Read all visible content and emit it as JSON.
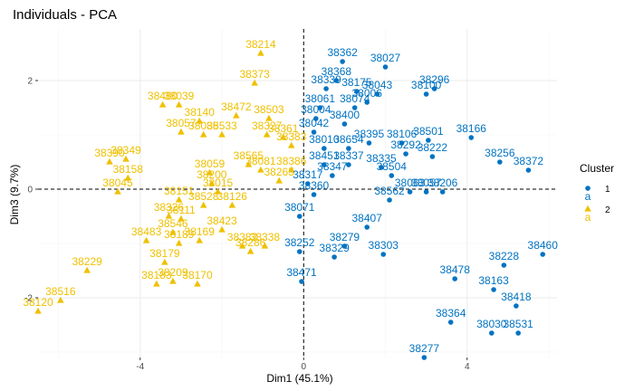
{
  "chart_data": {
    "type": "scatter",
    "title": "Individuals - PCA",
    "xlabel": "Dim1 (45.1%)",
    "ylabel": "Dim3 (9.7%)",
    "xlim": [
      -6.5,
      6.2
    ],
    "ylim": [
      -3.1,
      2.95
    ],
    "xticks": [
      -4,
      0,
      4
    ],
    "yticks": [
      -2,
      0,
      2
    ],
    "grid": true,
    "reference_lines": {
      "x": 0,
      "y": 0
    },
    "legend": {
      "title": "Cluster",
      "placement": "right",
      "entries": [
        {
          "label": "1",
          "symbol": "a",
          "color": "#0073C2"
        },
        {
          "label": "2",
          "symbol": "a",
          "color": "#EFC000"
        }
      ]
    },
    "series": [
      {
        "name": "1",
        "color": "#0073C2",
        "points": [
          {
            "id": "38362",
            "x": 0.95,
            "y": 2.35
          },
          {
            "id": "38027",
            "x": 2.0,
            "y": 2.25
          },
          {
            "id": "38368",
            "x": 0.8,
            "y": 2.0
          },
          {
            "id": "38339",
            "x": 0.55,
            "y": 1.85
          },
          {
            "id": "38175",
            "x": 1.3,
            "y": 1.8
          },
          {
            "id": "38296",
            "x": 3.2,
            "y": 1.85
          },
          {
            "id": "38100",
            "x": 3.0,
            "y": 1.75
          },
          {
            "id": "38043",
            "x": 1.8,
            "y": 1.75
          },
          {
            "id": "38006",
            "x": 1.55,
            "y": 1.6
          },
          {
            "id": "38061",
            "x": 0.4,
            "y": 1.5
          },
          {
            "id": "38074",
            "x": 1.25,
            "y": 1.5
          },
          {
            "id": "38004",
            "x": 0.3,
            "y": 1.3
          },
          {
            "id": "38400",
            "x": 1.0,
            "y": 1.2
          },
          {
            "id": "38042",
            "x": 0.25,
            "y": 1.05
          },
          {
            "id": "38395",
            "x": 1.6,
            "y": 0.85
          },
          {
            "id": "38106",
            "x": 2.4,
            "y": 0.85
          },
          {
            "id": "38501",
            "x": 3.05,
            "y": 0.9
          },
          {
            "id": "38166",
            "x": 4.1,
            "y": 0.95
          },
          {
            "id": "38010",
            "x": 0.5,
            "y": 0.75
          },
          {
            "id": "38654",
            "x": 1.1,
            "y": 0.75
          },
          {
            "id": "38292",
            "x": 2.5,
            "y": 0.65
          },
          {
            "id": "38256",
            "x": 4.8,
            "y": 0.5
          },
          {
            "id": "38372",
            "x": 5.5,
            "y": 0.35
          },
          {
            "id": "38451",
            "x": 0.5,
            "y": 0.45
          },
          {
            "id": "38337",
            "x": 1.1,
            "y": 0.45
          },
          {
            "id": "38335",
            "x": 1.9,
            "y": 0.4
          },
          {
            "id": "38504",
            "x": 2.15,
            "y": 0.25
          },
          {
            "id": "38347",
            "x": 0.7,
            "y": 0.25
          },
          {
            "id": "38222",
            "x": 3.15,
            "y": 0.6
          },
          {
            "id": "38317",
            "x": 0.1,
            "y": 0.1
          },
          {
            "id": "38360",
            "x": 0.25,
            "y": -0.1
          },
          {
            "id": "38063",
            "x": 2.6,
            "y": -0.05
          },
          {
            "id": "38057",
            "x": 3.0,
            "y": -0.05
          },
          {
            "id": "38206",
            "x": 3.4,
            "y": -0.05
          },
          {
            "id": "38562",
            "x": 2.1,
            "y": -0.2
          },
          {
            "id": "38071",
            "x": -0.1,
            "y": -0.5
          },
          {
            "id": "38407",
            "x": 1.55,
            "y": -0.7
          },
          {
            "id": "38279",
            "x": 1.0,
            "y": -1.05
          },
          {
            "id": "38252",
            "x": -0.1,
            "y": -1.15
          },
          {
            "id": "38329",
            "x": 0.75,
            "y": -1.25
          },
          {
            "id": "38303",
            "x": 1.95,
            "y": -1.2
          },
          {
            "id": "38471",
            "x": -0.05,
            "y": -1.7
          },
          {
            "id": "38460",
            "x": 5.85,
            "y": -1.2
          },
          {
            "id": "38228",
            "x": 4.9,
            "y": -1.4
          },
          {
            "id": "38478",
            "x": 3.7,
            "y": -1.65
          },
          {
            "id": "38163",
            "x": 4.65,
            "y": -1.85
          },
          {
            "id": "38418",
            "x": 5.2,
            "y": -2.15
          },
          {
            "id": "38364",
            "x": 3.6,
            "y": -2.45
          },
          {
            "id": "38030",
            "x": 4.6,
            "y": -2.65
          },
          {
            "id": "38531",
            "x": 5.25,
            "y": -2.65
          },
          {
            "id": "38277",
            "x": 2.95,
            "y": -3.3
          }
        ]
      },
      {
        "name": "2",
        "color": "#EFC000",
        "points": [
          {
            "id": "38214",
            "x": -1.05,
            "y": 2.5
          },
          {
            "id": "38373",
            "x": -1.2,
            "y": 1.95
          },
          {
            "id": "38480",
            "x": -3.45,
            "y": 1.55
          },
          {
            "id": "38039",
            "x": -3.05,
            "y": 1.55
          },
          {
            "id": "38472",
            "x": -1.65,
            "y": 1.35
          },
          {
            "id": "38503",
            "x": -0.85,
            "y": 1.3
          },
          {
            "id": "38140",
            "x": -2.55,
            "y": 1.25
          },
          {
            "id": "38057",
            "x": -3.0,
            "y": 1.05
          },
          {
            "id": "38085",
            "x": -2.45,
            "y": 1.0
          },
          {
            "id": "38533",
            "x": -2.0,
            "y": 1.0
          },
          {
            "id": "38327",
            "x": -0.9,
            "y": 1.0
          },
          {
            "id": "38361",
            "x": -0.5,
            "y": 0.95
          },
          {
            "id": "38383",
            "x": -0.3,
            "y": 0.8
          },
          {
            "id": "38349",
            "x": -4.35,
            "y": 0.55
          },
          {
            "id": "38390",
            "x": -4.75,
            "y": 0.5
          },
          {
            "id": "38565",
            "x": -1.35,
            "y": 0.45
          },
          {
            "id": "38158",
            "x": -4.3,
            "y": 0.2
          },
          {
            "id": "38059",
            "x": -2.3,
            "y": 0.3
          },
          {
            "id": "38081",
            "x": -1.05,
            "y": 0.35
          },
          {
            "id": "38386",
            "x": -0.3,
            "y": 0.35
          },
          {
            "id": "38200",
            "x": -2.25,
            "y": 0.1
          },
          {
            "id": "38265",
            "x": -0.6,
            "y": 0.15
          },
          {
            "id": "38045",
            "x": -4.55,
            "y": -0.05
          },
          {
            "id": "38151",
            "x": -3.05,
            "y": -0.2
          },
          {
            "id": "38015",
            "x": -2.1,
            "y": -0.05
          },
          {
            "id": "38528",
            "x": -2.45,
            "y": -0.3
          },
          {
            "id": "38126",
            "x": -1.75,
            "y": -0.3
          },
          {
            "id": "38326",
            "x": -3.3,
            "y": -0.5
          },
          {
            "id": "38111",
            "x": -3.0,
            "y": -0.55
          },
          {
            "id": "38423",
            "x": -2.0,
            "y": -0.75
          },
          {
            "id": "38546",
            "x": -3.2,
            "y": -0.8
          },
          {
            "id": "38169",
            "x": -2.55,
            "y": -0.95
          },
          {
            "id": "38483",
            "x": -3.85,
            "y": -0.95
          },
          {
            "id": "38189",
            "x": -3.05,
            "y": -1.0
          },
          {
            "id": "38382",
            "x": -1.5,
            "y": -1.05
          },
          {
            "id": "38338",
            "x": -0.95,
            "y": -1.05
          },
          {
            "id": "38286",
            "x": -1.3,
            "y": -1.15
          },
          {
            "id": "38179",
            "x": -3.4,
            "y": -1.35
          },
          {
            "id": "38229",
            "x": -5.3,
            "y": -1.5
          },
          {
            "id": "38209",
            "x": -3.2,
            "y": -1.7
          },
          {
            "id": "38183",
            "x": -3.6,
            "y": -1.75
          },
          {
            "id": "38170",
            "x": -2.6,
            "y": -1.75
          },
          {
            "id": "38516",
            "x": -5.95,
            "y": -2.05
          },
          {
            "id": "38120",
            "x": -6.5,
            "y": -2.25
          }
        ]
      }
    ]
  }
}
